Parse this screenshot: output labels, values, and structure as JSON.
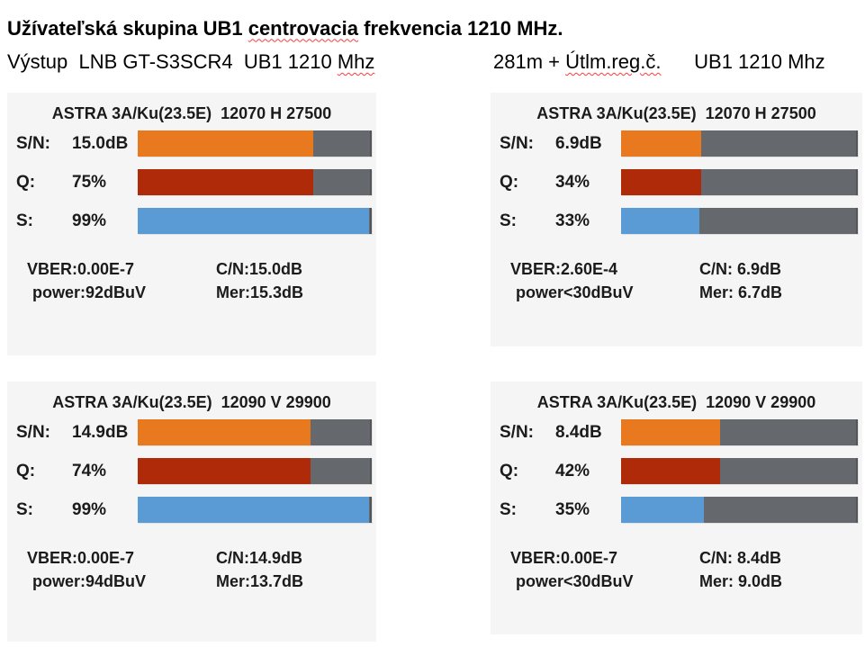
{
  "colors": {
    "orange": "#E8791F",
    "red": "#AE2A08",
    "blue": "#5B9BD5",
    "track_gray": "#65686D",
    "panel_bg": "#F5F5F5",
    "squiggle_red": "#FF3B3B",
    "text": "#1B1B1B"
  },
  "title": {
    "parts": [
      {
        "t": "Užívateľská skupina UB1 "
      },
      {
        "t": "centrovacia"
      },
      {
        "t": " frekvencia 1210 MHz."
      }
    ]
  },
  "subheaders": {
    "left": {
      "parts": [
        {
          "t": "Výstup  LNB GT-S3SCR4  UB1 1210 "
        },
        {
          "t": "Mhz"
        }
      ]
    },
    "right": {
      "parts": [
        {
          "t": "281m + "
        },
        {
          "t": "Útlm.reg.č."
        },
        {
          "t": "      UB1 1210 Mhz"
        }
      ]
    }
  },
  "panels": [
    {
      "header": "ASTRA 3A/Ku(23.5E)  12070 H 27500",
      "rows": [
        {
          "label": "S/N:",
          "value": "15.0dB",
          "fill": 75
        },
        {
          "label": "Q:",
          "value": "75%",
          "fill": 75
        },
        {
          "label": "S:",
          "value": "99%",
          "fill": 99
        }
      ],
      "footer": {
        "vber": "VBER:0.00E-7",
        "cn": "C/N:15.0dB",
        "power": "power:92dBuV",
        "mer": "Mer:15.3dB"
      }
    },
    {
      "header": "ASTRA 3A/Ku(23.5E)  12070 H 27500",
      "rows": [
        {
          "label": "S/N:",
          "value": "6.9dB",
          "fill": 34
        },
        {
          "label": "Q:",
          "value": "34%",
          "fill": 34
        },
        {
          "label": "S:",
          "value": "33%",
          "fill": 33
        }
      ],
      "footer": {
        "vber": "VBER:2.60E-4",
        "cn": "C/N: 6.9dB",
        "power": "power<30dBuV",
        "mer": "Mer: 6.7dB"
      }
    },
    {
      "header": "ASTRA 3A/Ku(23.5E)  12090 V 29900",
      "rows": [
        {
          "label": "S/N:",
          "value": "14.9dB",
          "fill": 74
        },
        {
          "label": "Q:",
          "value": "74%",
          "fill": 74
        },
        {
          "label": "S:",
          "value": "99%",
          "fill": 99
        }
      ],
      "footer": {
        "vber": "VBER:0.00E-7",
        "cn": "C/N:14.9dB",
        "power": "power:94dBuV",
        "mer": "Mer:13.7dB"
      }
    },
    {
      "header": "ASTRA 3A/Ku(23.5E)  12090 V 29900",
      "rows": [
        {
          "label": "S/N:",
          "value": "8.4dB",
          "fill": 42
        },
        {
          "label": "Q:",
          "value": "42%",
          "fill": 42
        },
        {
          "label": "S:",
          "value": "35%",
          "fill": 35
        }
      ],
      "footer": {
        "vber": "VBER:0.00E-7",
        "cn": "C/N: 8.4dB",
        "power": "power<30dBuV",
        "mer": "Mer: 9.0dB"
      }
    }
  ]
}
